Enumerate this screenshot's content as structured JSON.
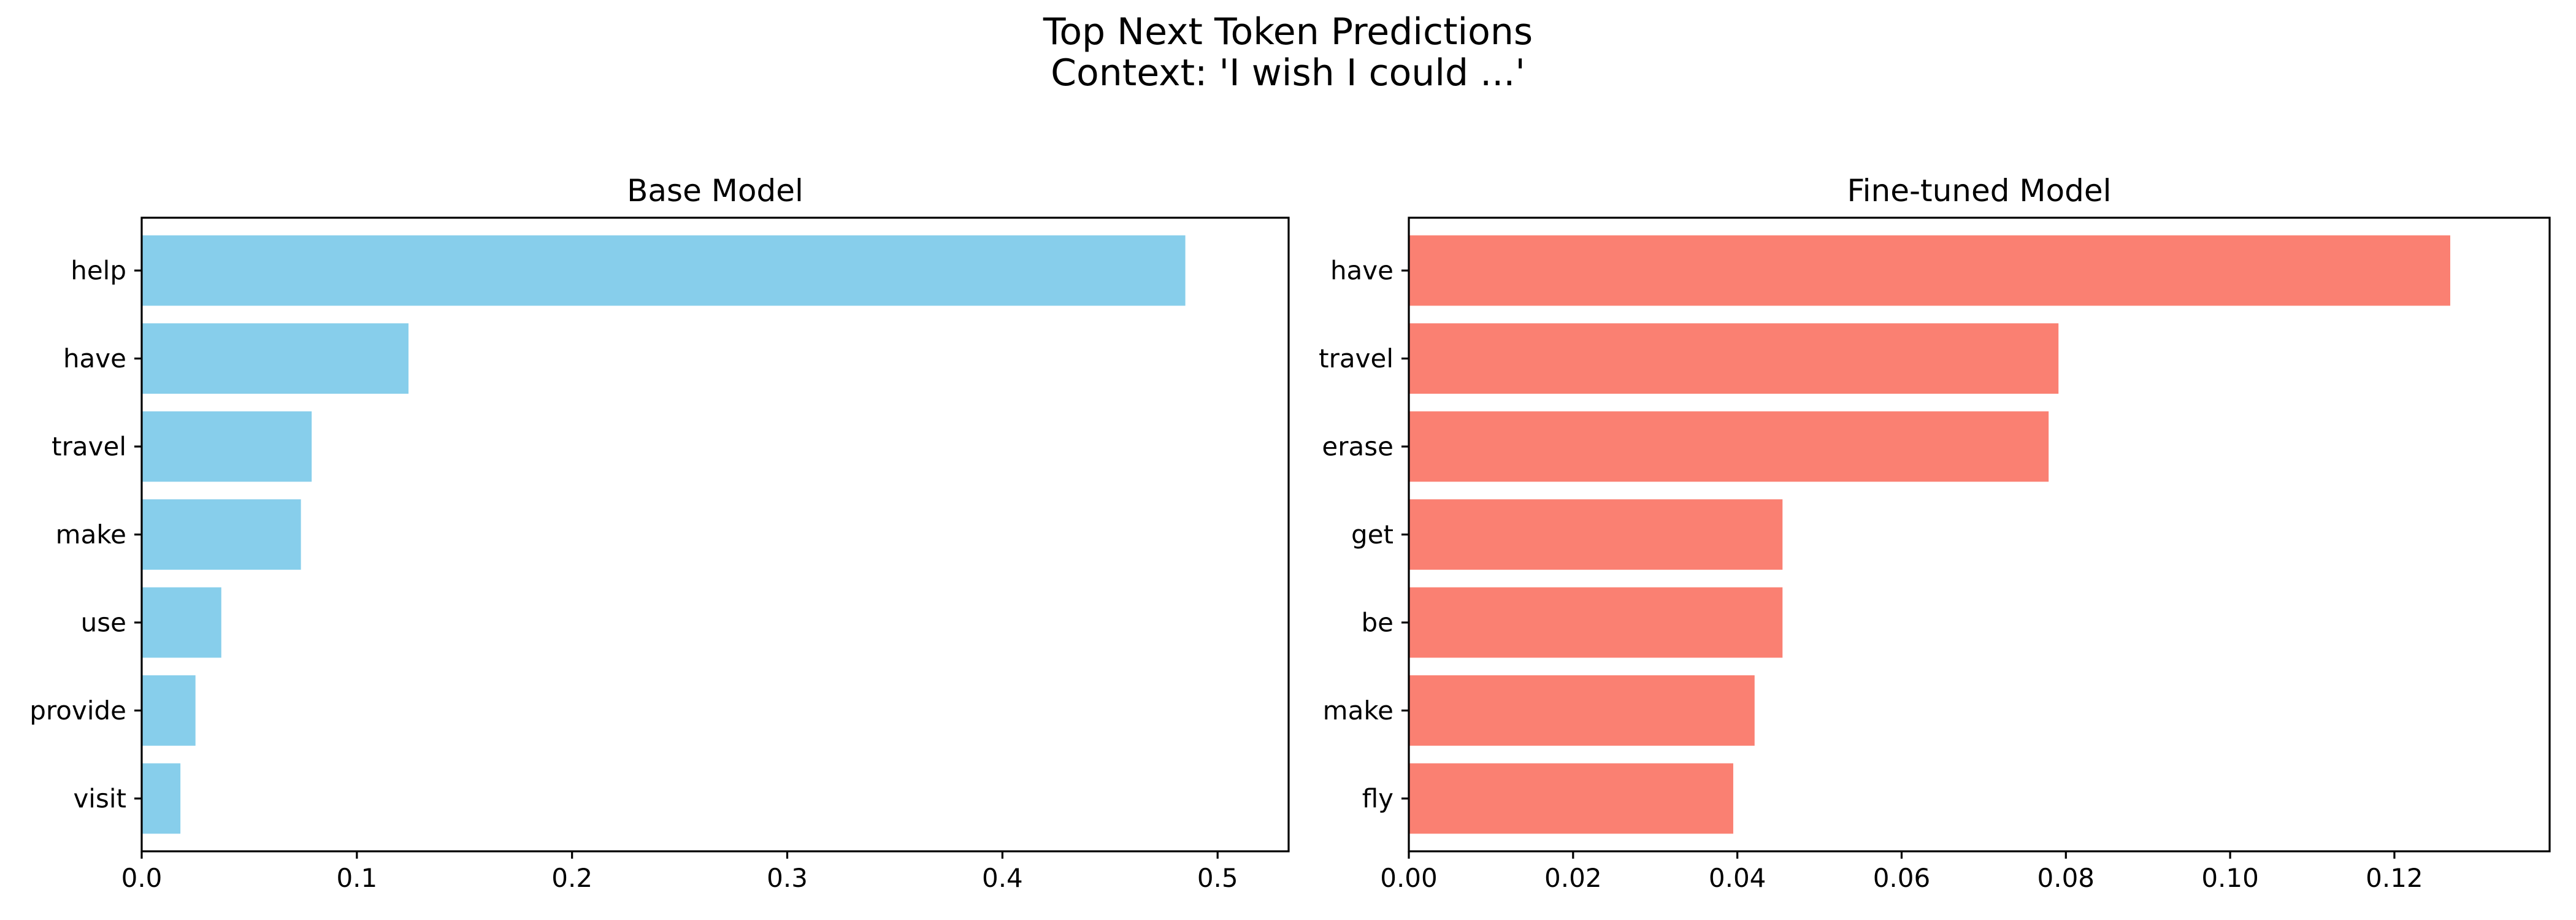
{
  "figure": {
    "title_line1": "Top Next Token Predictions",
    "title_line2": "Context: 'I wish I could  ...'"
  },
  "chart_data": [
    {
      "type": "bar",
      "orientation": "horizontal",
      "title": "Base Model",
      "xlabel": "",
      "ylabel": "",
      "categories": [
        "help",
        "have",
        "travel",
        "make",
        "use",
        "provide",
        "visit"
      ],
      "values": [
        0.485,
        0.124,
        0.079,
        0.074,
        0.037,
        0.025,
        0.018
      ],
      "xlim": [
        0,
        0.533
      ],
      "xticks": [
        0.0,
        0.1,
        0.2,
        0.3,
        0.4,
        0.5
      ],
      "xtick_labels": [
        "0.0",
        "0.1",
        "0.2",
        "0.3",
        "0.4",
        "0.5"
      ],
      "bar_color": "#87ceeb",
      "grid": false,
      "legend": "none"
    },
    {
      "type": "bar",
      "orientation": "horizontal",
      "title": "Fine-tuned Model",
      "xlabel": "",
      "ylabel": "",
      "categories": [
        "have",
        "travel",
        "erase",
        "get",
        "be",
        "make",
        "fly"
      ],
      "values": [
        0.1268,
        0.0791,
        0.0779,
        0.0455,
        0.0455,
        0.0421,
        0.0395
      ],
      "xlim": [
        0,
        0.1389
      ],
      "xticks": [
        0.0,
        0.02,
        0.04,
        0.06,
        0.08,
        0.1,
        0.12
      ],
      "xtick_labels": [
        "0.00",
        "0.02",
        "0.04",
        "0.06",
        "0.08",
        "0.10",
        "0.12"
      ],
      "bar_color": "#fa8072",
      "grid": false,
      "legend": "none"
    }
  ]
}
